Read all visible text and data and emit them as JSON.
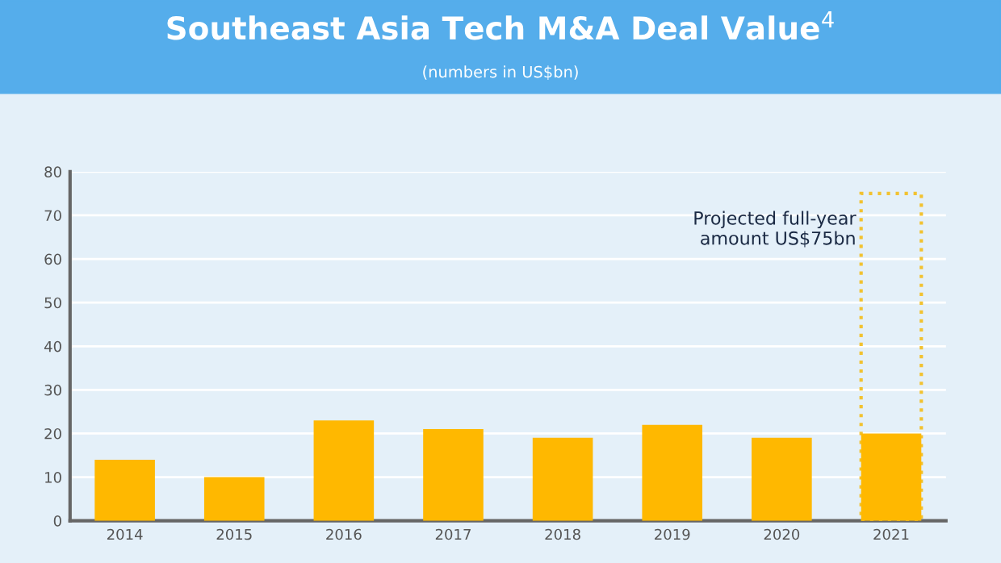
{
  "chart_data": {
    "type": "bar",
    "title": "Southeast Asia Tech M&A Deal Value$^{4}$",
    "subtitle": "(numbers in US$bn)",
    "categories": [
      "2014",
      "2015",
      "2016",
      "2017",
      "2018",
      "2019",
      "2020",
      "2021"
    ],
    "series": [
      {
        "color": "#ffb800",
        "values": [
          14,
          10,
          23,
          21,
          19,
          22,
          19,
          20
        ]
      },
      {
        "color": "#f2c230",
        "line_style": "dotted",
        "values": [
          null,
          null,
          null,
          null,
          null,
          null,
          null,
          75
        ]
      }
    ],
    "annotations": [
      {
        "text": "Projected full-year\namount US$75bn",
        "x": "2021",
        "y": 75
      }
    ],
    "ylim": [
      0,
      80
    ],
    "yticks": [
      0,
      10,
      20,
      30,
      40,
      50,
      60,
      70,
      80
    ],
    "grid": "y",
    "legend": false
  }
}
